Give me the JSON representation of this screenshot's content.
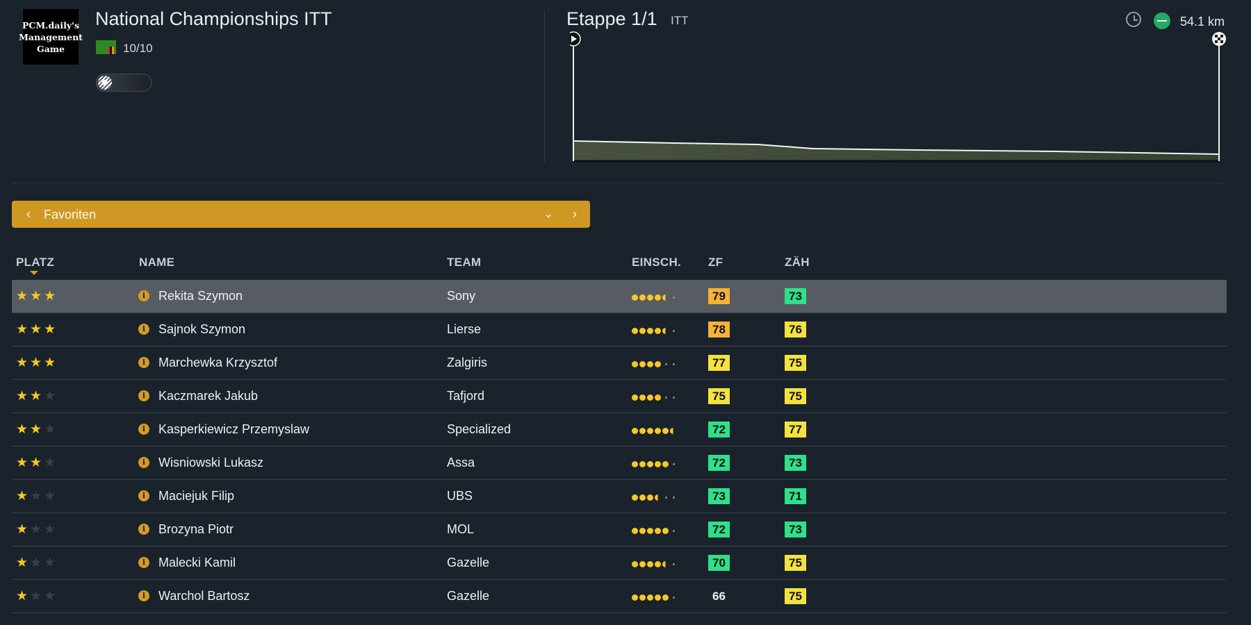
{
  "header": {
    "logo_lines": [
      "PCM.daily's",
      "Management",
      "Game"
    ],
    "race_title": "National Championships ITT",
    "rating": "10/10",
    "stage_title": "Etappe 1/1",
    "stage_type": "ITT",
    "distance": "54.1 km"
  },
  "selector": {
    "label": "Favoriten",
    "prev": "‹",
    "next": "›",
    "dropdown": "⌄"
  },
  "columns": {
    "rank": "PLATZ",
    "name": "NAME",
    "team": "TEAM",
    "estimate": "EINSCH.",
    "zf": "ZF",
    "zah": "ZÄH"
  },
  "colors": {
    "accent": "#cf9824",
    "badge_orange": "#f5b335",
    "badge_yellow": "#f3e23f",
    "badge_green": "#2fe08a"
  },
  "rows": [
    {
      "stars": 3,
      "name": "Rekita Szymon",
      "team": "Sony",
      "est": [
        "f",
        "f",
        "f",
        "f",
        "h",
        "e"
      ],
      "zf": "79",
      "zf_color": "orange",
      "zah": "73",
      "zah_color": "green",
      "selected": true
    },
    {
      "stars": 3,
      "name": "Sajnok Szymon",
      "team": "Lierse",
      "est": [
        "f",
        "f",
        "f",
        "f",
        "h",
        "e"
      ],
      "zf": "78",
      "zf_color": "orange",
      "zah": "76",
      "zah_color": "yellow"
    },
    {
      "stars": 3,
      "name": "Marchewka Krzysztof",
      "team": "Zalgiris",
      "est": [
        "f",
        "f",
        "f",
        "f",
        "e",
        "e"
      ],
      "zf": "77",
      "zf_color": "yellow",
      "zah": "75",
      "zah_color": "yellow"
    },
    {
      "stars": 2,
      "name": "Kaczmarek Jakub",
      "team": "Tafjord",
      "est": [
        "f",
        "f",
        "f",
        "f",
        "e",
        "e"
      ],
      "zf": "75",
      "zf_color": "yellow",
      "zah": "75",
      "zah_color": "yellow"
    },
    {
      "stars": 2,
      "name": "Kasperkiewicz Przemyslaw",
      "team": "Specialized",
      "est": [
        "f",
        "f",
        "f",
        "f",
        "f",
        "h"
      ],
      "zf": "72",
      "zf_color": "green",
      "zah": "77",
      "zah_color": "yellow"
    },
    {
      "stars": 2,
      "name": "Wisniowski Lukasz",
      "team": "Assa",
      "est": [
        "f",
        "f",
        "f",
        "f",
        "f",
        "e"
      ],
      "zf": "72",
      "zf_color": "green",
      "zah": "73",
      "zah_color": "green"
    },
    {
      "stars": 1,
      "name": "Maciejuk Filip",
      "team": "UBS",
      "est": [
        "f",
        "f",
        "f",
        "h",
        "e",
        "e"
      ],
      "zf": "73",
      "zf_color": "green",
      "zah": "71",
      "zah_color": "green"
    },
    {
      "stars": 1,
      "name": "Brozyna Piotr",
      "team": "MOL",
      "est": [
        "f",
        "f",
        "f",
        "f",
        "f",
        "e"
      ],
      "zf": "72",
      "zf_color": "green",
      "zah": "73",
      "zah_color": "green"
    },
    {
      "stars": 1,
      "name": "Malecki Kamil",
      "team": "Gazelle",
      "est": [
        "f",
        "f",
        "f",
        "f",
        "h",
        "e"
      ],
      "zf": "70",
      "zf_color": "green",
      "zah": "75",
      "zah_color": "yellow"
    },
    {
      "stars": 1,
      "name": "Warchol Bartosz",
      "team": "Gazelle",
      "est": [
        "f",
        "f",
        "f",
        "f",
        "f",
        "e"
      ],
      "zf": "66",
      "zf_color": "none",
      "zah": "75",
      "zah_color": "yellow"
    }
  ]
}
